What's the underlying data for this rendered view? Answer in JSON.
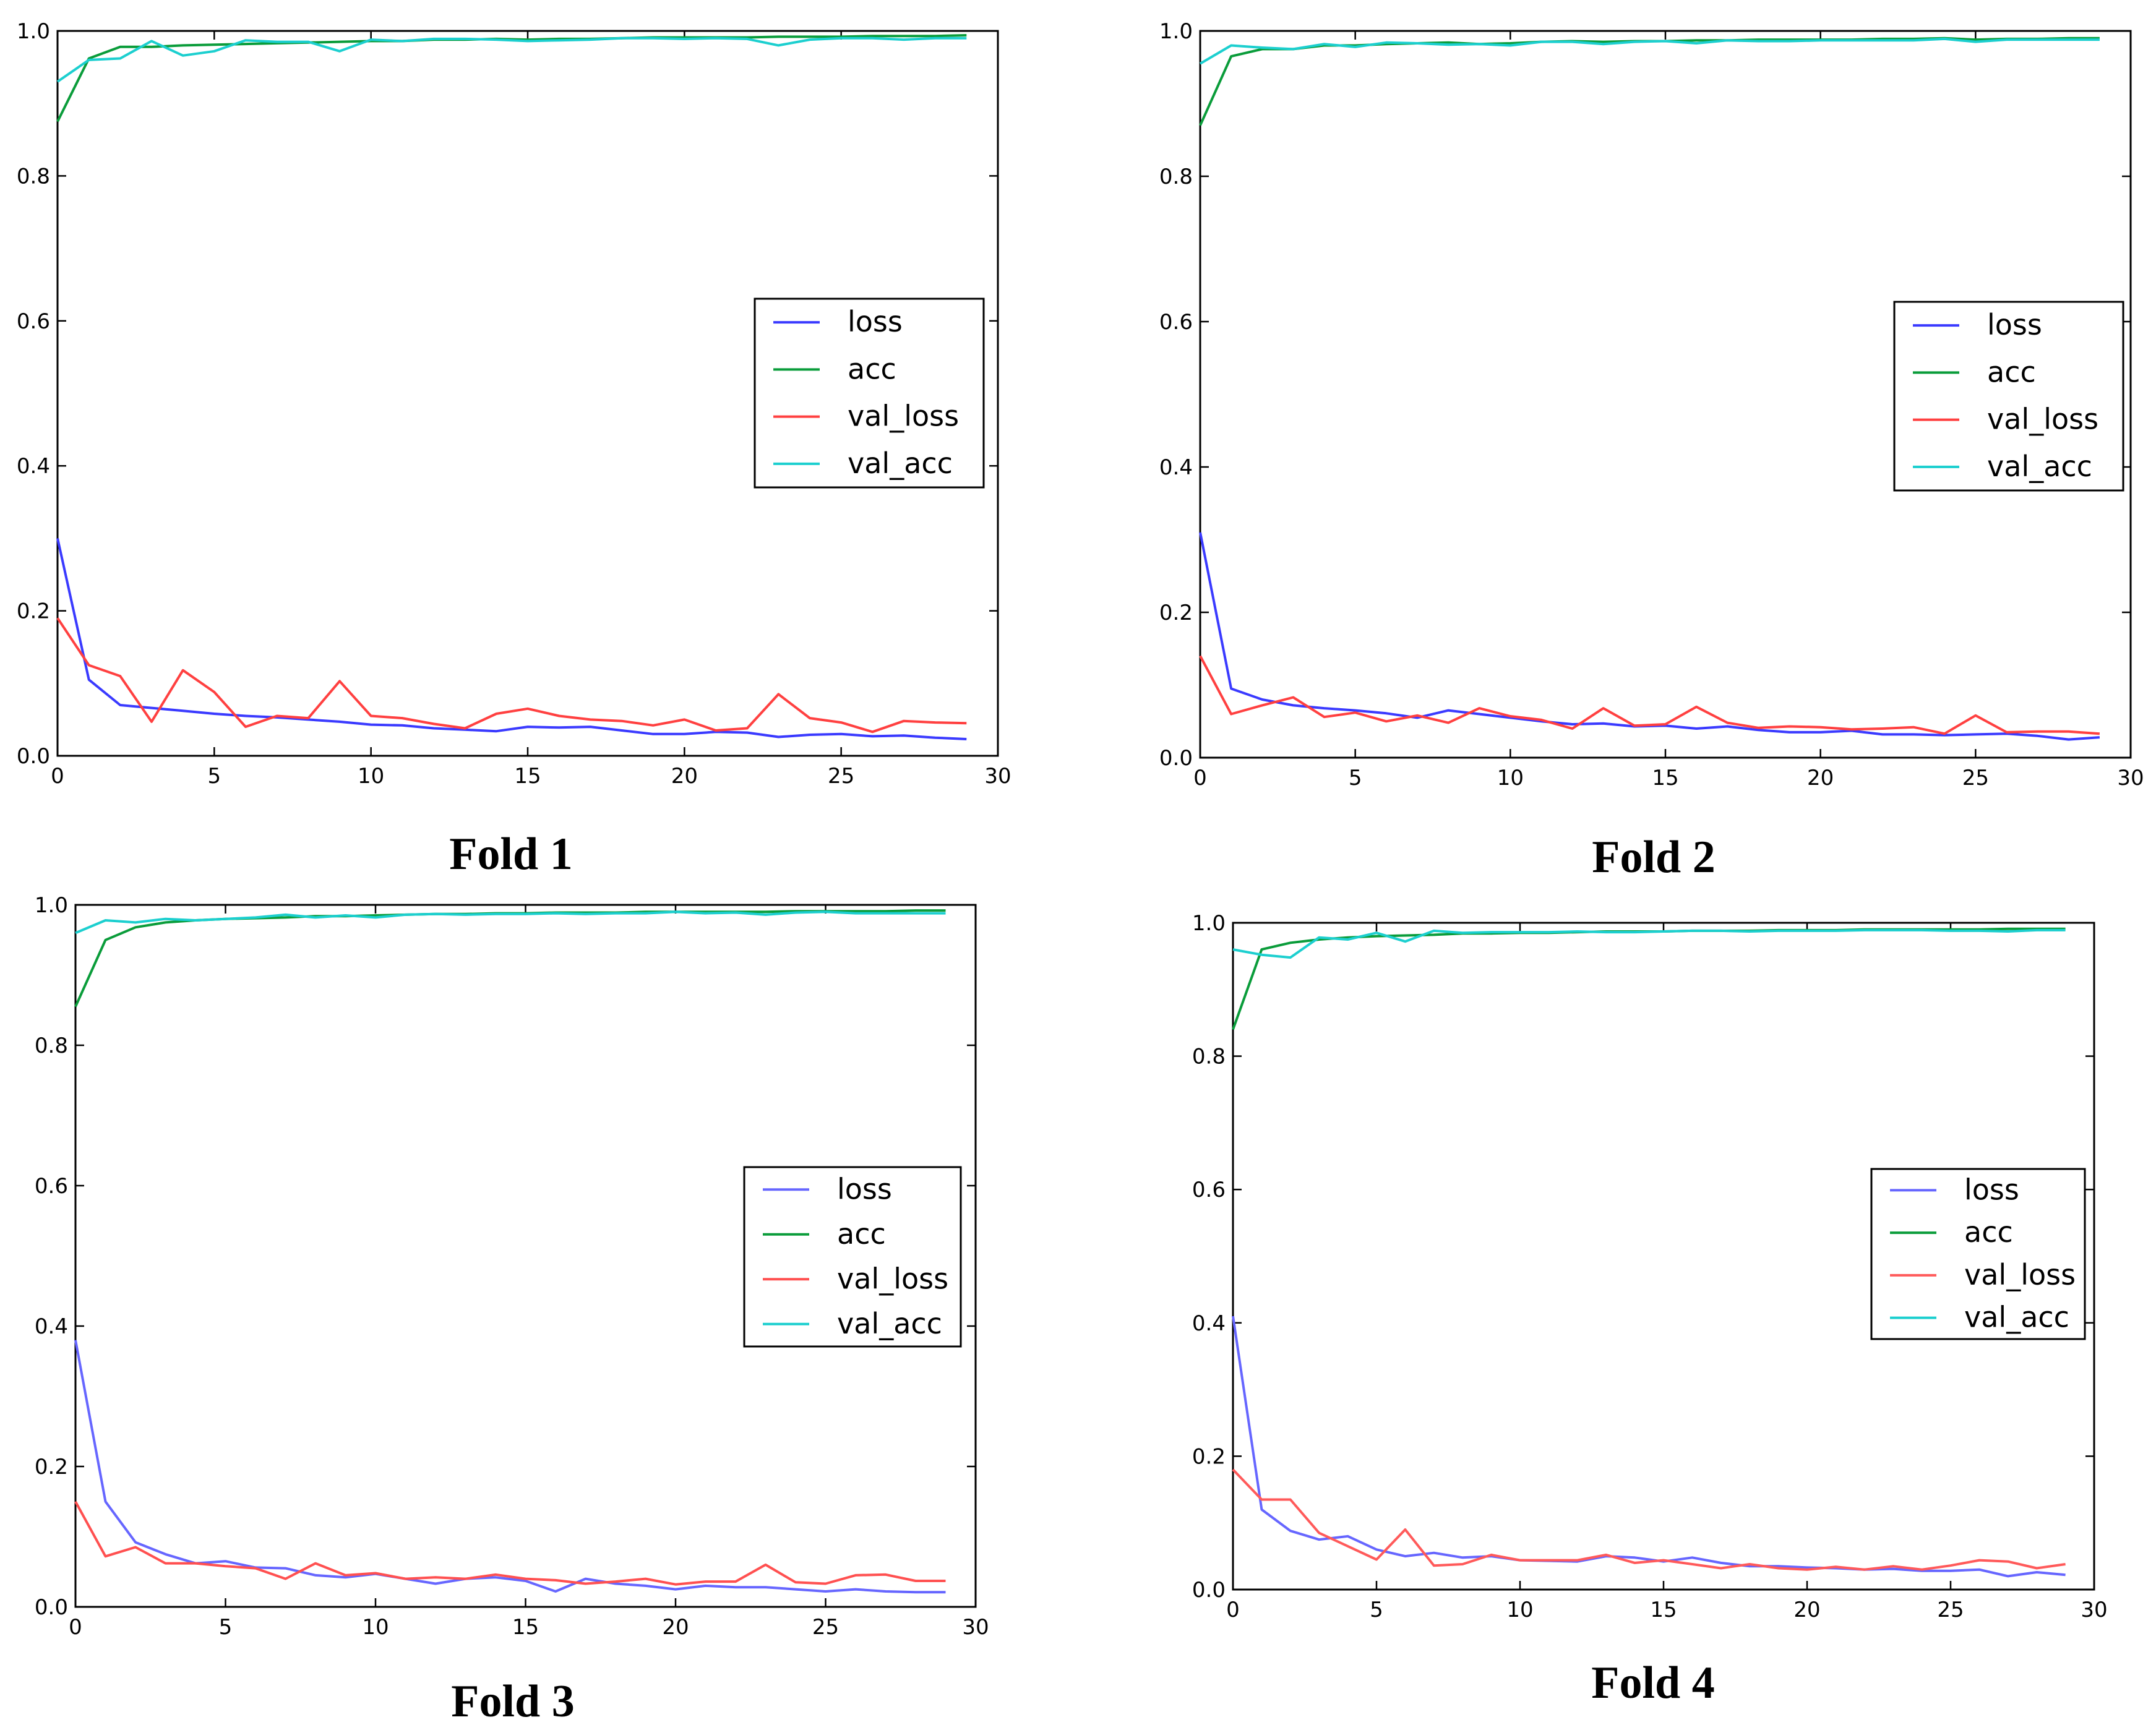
{
  "chart_data": [
    {
      "type": "line",
      "title": "Fold 1",
      "xlim": [
        0,
        30
      ],
      "ylim": [
        0,
        1.0
      ],
      "xticks": [
        0,
        5,
        10,
        15,
        20,
        25,
        30
      ],
      "yticks": [
        "0.0",
        "0.2",
        "0.4",
        "0.6",
        "0.8",
        "1.0"
      ],
      "legend_position": "center-right",
      "x": [
        0,
        1,
        2,
        3,
        4,
        5,
        6,
        7,
        8,
        9,
        10,
        11,
        12,
        13,
        14,
        15,
        16,
        17,
        18,
        19,
        20,
        21,
        22,
        23,
        24,
        25,
        26,
        27,
        28,
        29
      ],
      "series": [
        {
          "name": "loss",
          "color": "#3a3aff",
          "values": [
            0.3,
            0.105,
            0.07,
            0.066,
            0.062,
            0.058,
            0.055,
            0.053,
            0.05,
            0.047,
            0.043,
            0.042,
            0.038,
            0.036,
            0.034,
            0.04,
            0.039,
            0.04,
            0.035,
            0.03,
            0.03,
            0.033,
            0.032,
            0.026,
            0.029,
            0.03,
            0.027,
            0.028,
            0.025,
            0.023
          ]
        },
        {
          "name": "acc",
          "color": "#0a9c3a",
          "values": [
            0.875,
            0.962,
            0.978,
            0.978,
            0.98,
            0.981,
            0.982,
            0.983,
            0.984,
            0.985,
            0.986,
            0.986,
            0.988,
            0.988,
            0.989,
            0.988,
            0.989,
            0.989,
            0.99,
            0.991,
            0.991,
            0.991,
            0.991,
            0.992,
            0.992,
            0.992,
            0.993,
            0.993,
            0.993,
            0.994
          ]
        },
        {
          "name": "val_loss",
          "color": "#ff4040",
          "values": [
            0.19,
            0.125,
            0.11,
            0.047,
            0.118,
            0.088,
            0.04,
            0.055,
            0.052,
            0.103,
            0.055,
            0.052,
            0.044,
            0.038,
            0.058,
            0.065,
            0.055,
            0.05,
            0.048,
            0.042,
            0.05,
            0.035,
            0.038,
            0.085,
            0.052,
            0.046,
            0.033,
            0.048,
            0.046,
            0.045
          ]
        },
        {
          "name": "val_acc",
          "color": "#1ccfcf",
          "values": [
            0.93,
            0.96,
            0.962,
            0.986,
            0.966,
            0.972,
            0.987,
            0.985,
            0.985,
            0.972,
            0.988,
            0.986,
            0.989,
            0.989,
            0.988,
            0.986,
            0.987,
            0.988,
            0.99,
            0.99,
            0.989,
            0.99,
            0.989,
            0.98,
            0.988,
            0.99,
            0.99,
            0.988,
            0.99,
            0.99
          ]
        }
      ]
    },
    {
      "type": "line",
      "title": "Fold 2",
      "xlim": [
        0,
        30
      ],
      "ylim": [
        0,
        1.0
      ],
      "xticks": [
        0,
        5,
        10,
        15,
        20,
        25,
        30
      ],
      "yticks": [
        "0.0",
        "0.2",
        "0.4",
        "0.6",
        "0.8",
        "1.0"
      ],
      "legend_position": "center-right",
      "x": [
        0,
        1,
        2,
        3,
        4,
        5,
        6,
        7,
        8,
        9,
        10,
        11,
        12,
        13,
        14,
        15,
        16,
        17,
        18,
        19,
        20,
        21,
        22,
        23,
        24,
        25,
        26,
        27,
        28,
        29
      ],
      "series": [
        {
          "name": "loss",
          "color": "#3a3aff",
          "values": [
            0.31,
            0.095,
            0.08,
            0.072,
            0.068,
            0.065,
            0.061,
            0.055,
            0.065,
            0.06,
            0.055,
            0.05,
            0.046,
            0.047,
            0.043,
            0.044,
            0.04,
            0.043,
            0.038,
            0.035,
            0.035,
            0.037,
            0.032,
            0.032,
            0.031,
            0.032,
            0.033,
            0.03,
            0.025,
            0.028
          ]
        },
        {
          "name": "acc",
          "color": "#0a9c3a",
          "values": [
            0.87,
            0.965,
            0.975,
            0.975,
            0.98,
            0.98,
            0.982,
            0.983,
            0.984,
            0.982,
            0.983,
            0.985,
            0.986,
            0.985,
            0.986,
            0.986,
            0.987,
            0.987,
            0.988,
            0.988,
            0.988,
            0.988,
            0.989,
            0.989,
            0.99,
            0.988,
            0.989,
            0.989,
            0.99,
            0.99
          ]
        },
        {
          "name": "val_loss",
          "color": "#ff4040",
          "values": [
            0.14,
            0.06,
            0.072,
            0.083,
            0.056,
            0.062,
            0.05,
            0.058,
            0.048,
            0.068,
            0.057,
            0.052,
            0.04,
            0.068,
            0.044,
            0.046,
            0.07,
            0.048,
            0.041,
            0.043,
            0.042,
            0.039,
            0.04,
            0.042,
            0.033,
            0.058,
            0.035,
            0.036,
            0.036,
            0.033
          ]
        },
        {
          "name": "val_acc",
          "color": "#1ccfcf",
          "values": [
            0.955,
            0.98,
            0.977,
            0.975,
            0.982,
            0.978,
            0.984,
            0.983,
            0.981,
            0.982,
            0.98,
            0.985,
            0.985,
            0.982,
            0.985,
            0.986,
            0.983,
            0.987,
            0.986,
            0.986,
            0.987,
            0.987,
            0.987,
            0.987,
            0.989,
            0.985,
            0.988,
            0.988,
            0.988,
            0.988
          ]
        }
      ]
    },
    {
      "type": "line",
      "title": "Fold 3",
      "xlim": [
        0,
        30
      ],
      "ylim": [
        0,
        1.0
      ],
      "xticks": [
        0,
        5,
        10,
        15,
        20,
        25,
        30
      ],
      "yticks": [
        "0.0",
        "0.2",
        "0.4",
        "0.6",
        "0.8",
        "1.0"
      ],
      "legend_position": "center-right",
      "x": [
        0,
        1,
        2,
        3,
        4,
        5,
        6,
        7,
        8,
        9,
        10,
        11,
        12,
        13,
        14,
        15,
        16,
        17,
        18,
        19,
        20,
        21,
        22,
        23,
        24,
        25,
        26,
        27,
        28,
        29
      ],
      "series": [
        {
          "name": "loss",
          "color": "#6666ff",
          "values": [
            0.38,
            0.15,
            0.092,
            0.075,
            0.062,
            0.065,
            0.056,
            0.055,
            0.045,
            0.042,
            0.047,
            0.04,
            0.033,
            0.04,
            0.042,
            0.037,
            0.022,
            0.04,
            0.033,
            0.03,
            0.025,
            0.03,
            0.028,
            0.028,
            0.025,
            0.022,
            0.025,
            0.022,
            0.021,
            0.021
          ]
        },
        {
          "name": "acc",
          "color": "#0a9c3a",
          "values": [
            0.855,
            0.95,
            0.968,
            0.975,
            0.978,
            0.98,
            0.981,
            0.982,
            0.984,
            0.984,
            0.985,
            0.986,
            0.987,
            0.987,
            0.988,
            0.988,
            0.989,
            0.989,
            0.989,
            0.99,
            0.99,
            0.99,
            0.99,
            0.99,
            0.991,
            0.991,
            0.991,
            0.991,
            0.992,
            0.992
          ]
        },
        {
          "name": "val_loss",
          "color": "#ff5050",
          "values": [
            0.15,
            0.072,
            0.085,
            0.062,
            0.062,
            0.058,
            0.055,
            0.04,
            0.062,
            0.045,
            0.048,
            0.04,
            0.042,
            0.04,
            0.046,
            0.04,
            0.038,
            0.033,
            0.036,
            0.04,
            0.032,
            0.036,
            0.036,
            0.06,
            0.035,
            0.033,
            0.045,
            0.046,
            0.037,
            0.037
          ]
        },
        {
          "name": "val_acc",
          "color": "#1ccfcf",
          "values": [
            0.96,
            0.978,
            0.975,
            0.98,
            0.978,
            0.98,
            0.982,
            0.986,
            0.982,
            0.985,
            0.982,
            0.986,
            0.987,
            0.986,
            0.987,
            0.987,
            0.988,
            0.987,
            0.988,
            0.988,
            0.99,
            0.988,
            0.989,
            0.986,
            0.989,
            0.99,
            0.988,
            0.988,
            0.988,
            0.988
          ]
        }
      ]
    },
    {
      "type": "line",
      "title": "Fold 4",
      "xlim": [
        0,
        30
      ],
      "ylim": [
        0,
        1.0
      ],
      "xticks": [
        0,
        5,
        10,
        15,
        20,
        25,
        30
      ],
      "yticks": [
        "0.0",
        "0.2",
        "0.4",
        "0.6",
        "0.8",
        "1.0"
      ],
      "legend_position": "center-right",
      "x": [
        0,
        1,
        2,
        3,
        4,
        5,
        6,
        7,
        8,
        9,
        10,
        11,
        12,
        13,
        14,
        15,
        16,
        17,
        18,
        19,
        20,
        21,
        22,
        23,
        24,
        25,
        26,
        27,
        28,
        29
      ],
      "series": [
        {
          "name": "loss",
          "color": "#6666ff",
          "values": [
            0.41,
            0.12,
            0.088,
            0.075,
            0.08,
            0.06,
            0.05,
            0.055,
            0.048,
            0.05,
            0.044,
            0.043,
            0.042,
            0.05,
            0.048,
            0.042,
            0.048,
            0.04,
            0.035,
            0.035,
            0.033,
            0.032,
            0.03,
            0.031,
            0.028,
            0.028,
            0.03,
            0.02,
            0.026,
            0.022
          ]
        },
        {
          "name": "acc",
          "color": "#0a9c3a",
          "values": [
            0.84,
            0.96,
            0.97,
            0.975,
            0.978,
            0.98,
            0.981,
            0.982,
            0.984,
            0.984,
            0.985,
            0.985,
            0.986,
            0.987,
            0.987,
            0.987,
            0.988,
            0.988,
            0.988,
            0.989,
            0.989,
            0.989,
            0.99,
            0.99,
            0.99,
            0.99,
            0.99,
            0.991,
            0.991,
            0.991
          ]
        },
        {
          "name": "val_loss",
          "color": "#ff5a5a",
          "values": [
            0.18,
            0.135,
            0.135,
            0.085,
            0.065,
            0.045,
            0.09,
            0.036,
            0.038,
            0.052,
            0.044,
            0.044,
            0.044,
            0.052,
            0.04,
            0.044,
            0.038,
            0.032,
            0.038,
            0.032,
            0.03,
            0.034,
            0.03,
            0.035,
            0.03,
            0.036,
            0.044,
            0.042,
            0.032,
            0.038
          ]
        },
        {
          "name": "val_acc",
          "color": "#1ccfcf",
          "values": [
            0.96,
            0.952,
            0.948,
            0.978,
            0.975,
            0.985,
            0.972,
            0.988,
            0.985,
            0.986,
            0.986,
            0.986,
            0.987,
            0.986,
            0.986,
            0.987,
            0.988,
            0.988,
            0.987,
            0.988,
            0.988,
            0.988,
            0.989,
            0.989,
            0.989,
            0.988,
            0.988,
            0.987,
            0.989,
            0.989
          ]
        }
      ]
    }
  ]
}
